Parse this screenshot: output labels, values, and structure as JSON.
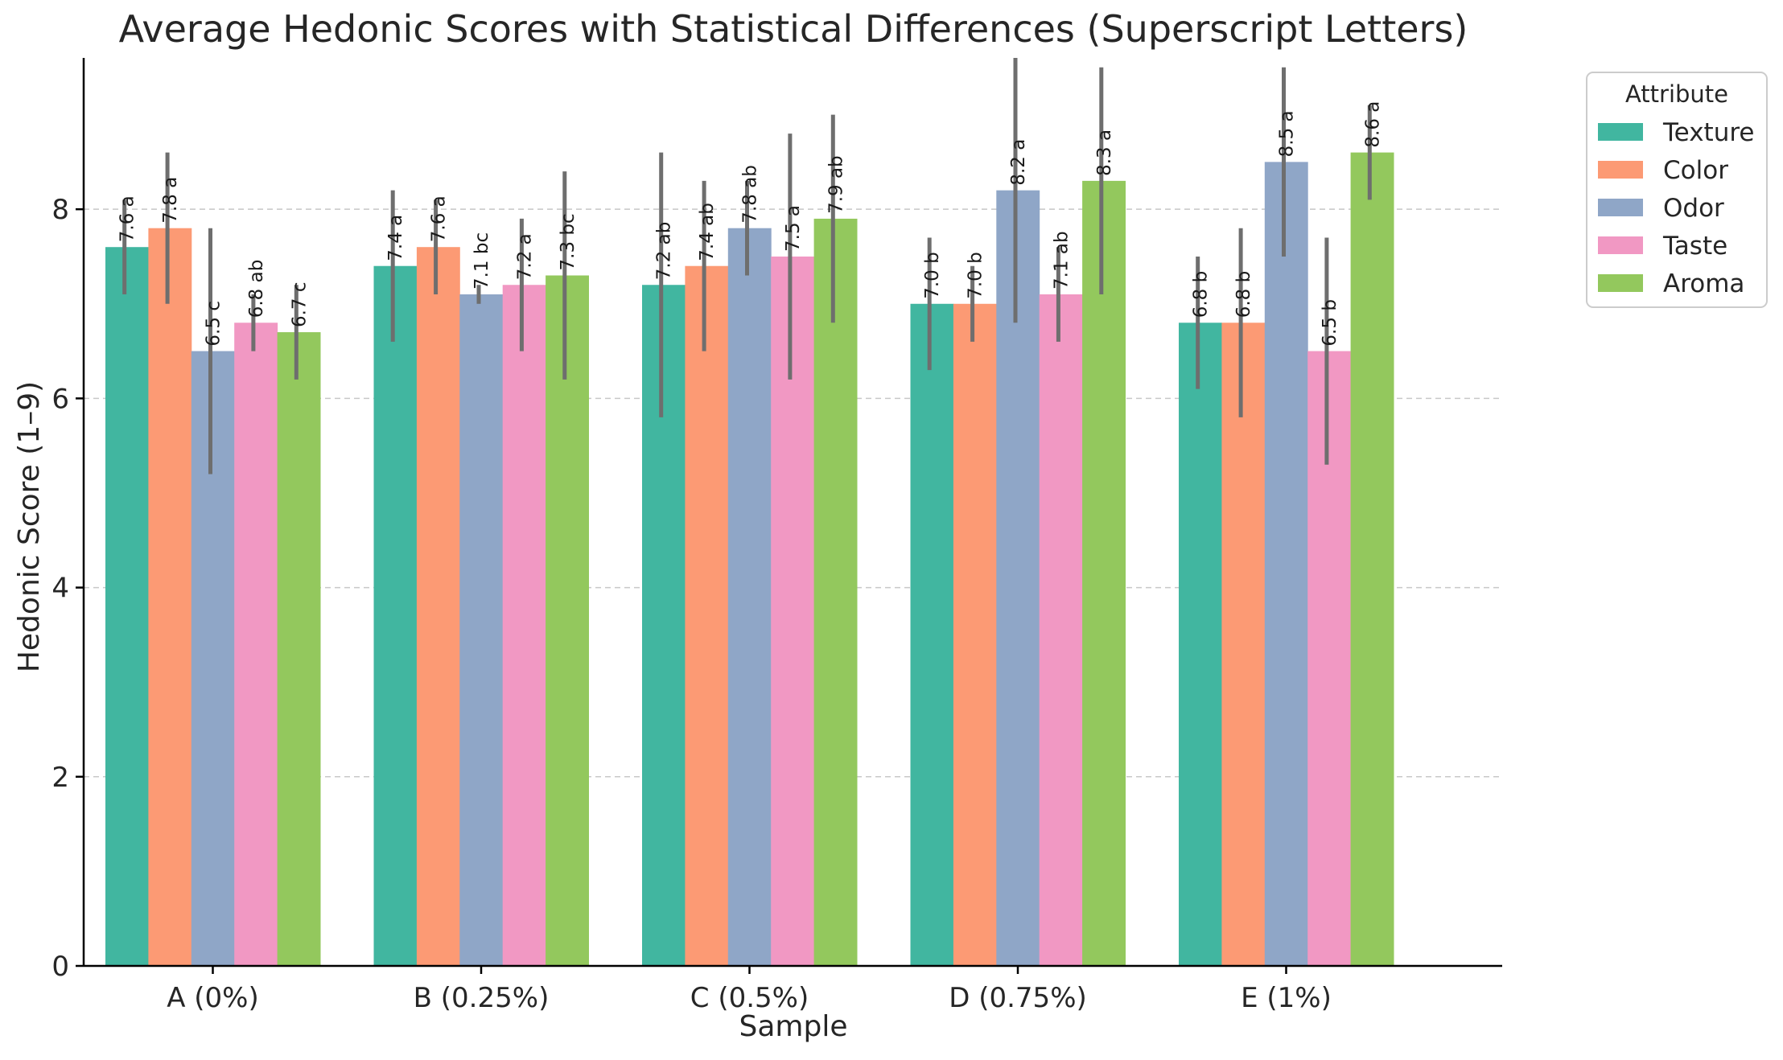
{
  "chart_data": {
    "type": "bar",
    "title": "Average Hedonic Scores with Statistical Differences (Superscript Letters)",
    "xlabel": "Sample",
    "ylabel": "Hedonic Score (1–9)",
    "ylim": [
      0,
      9.6
    ],
    "yticks": [
      0,
      2,
      4,
      6,
      8
    ],
    "grid": "y-dashed",
    "legend_title": "Attribute",
    "legend_position": "outside-right-top",
    "categories": [
      "A (0%)",
      "B (0.25%)",
      "C (0.5%)",
      "D (0.75%)",
      "E (1%)"
    ],
    "series": [
      {
        "name": "Texture",
        "color": "#41b6a0",
        "values": [
          7.6,
          7.4,
          7.2,
          7.0,
          6.8
        ],
        "errors": [
          0.5,
          0.8,
          1.4,
          0.7,
          0.7
        ],
        "labels": [
          "7.6 a",
          "7.4 a",
          "7.2 ab",
          "7.0 b",
          "6.8 b"
        ]
      },
      {
        "name": "Color",
        "color": "#fc9a74",
        "values": [
          7.8,
          7.6,
          7.4,
          7.0,
          6.8
        ],
        "errors": [
          0.8,
          0.5,
          0.9,
          0.4,
          1.0
        ],
        "labels": [
          "7.8 a",
          "7.6 a",
          "7.4 ab",
          "7.0 b",
          "6.8 b"
        ]
      },
      {
        "name": "Odor",
        "color": "#8fa6c7",
        "values": [
          6.5,
          7.1,
          7.8,
          8.2,
          8.5
        ],
        "errors": [
          1.3,
          0.1,
          0.5,
          1.4,
          1.0
        ],
        "labels": [
          "6.5 c",
          "7.1 bc",
          "7.8 ab",
          "8.2 a",
          "8.5 a"
        ]
      },
      {
        "name": "Taste",
        "color": "#f198c3",
        "values": [
          6.8,
          7.2,
          7.5,
          7.1,
          6.5
        ],
        "errors": [
          0.3,
          0.7,
          1.3,
          0.5,
          1.2
        ],
        "labels": [
          "6.8 ab",
          "7.2 a",
          "7.5 a",
          "7.1 ab",
          "6.5 b"
        ]
      },
      {
        "name": "Aroma",
        "color": "#93c85d",
        "values": [
          6.7,
          7.3,
          7.9,
          8.3,
          8.6
        ],
        "errors": [
          0.5,
          1.1,
          1.1,
          1.2,
          0.5
        ],
        "labels": [
          "6.7 c",
          "7.3 bc",
          "7.9 ab",
          "8.3 a",
          "8.6 a"
        ]
      }
    ]
  }
}
